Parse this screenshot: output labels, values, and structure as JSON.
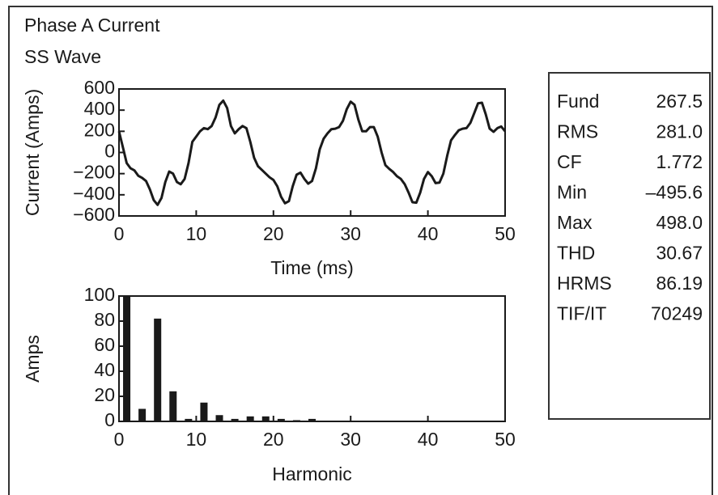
{
  "header": {
    "title": "Phase A Current",
    "subtitle": "SS Wave"
  },
  "chart_data": [
    {
      "type": "line",
      "color": "#1a1a1a",
      "x_label": "Time (ms)",
      "y_label": "Current (Amps)",
      "x": [
        0,
        0.5,
        1,
        1.5,
        2,
        2.5,
        3,
        3.5,
        4,
        4.5,
        5,
        5.5,
        6,
        6.5,
        7,
        7.5,
        8,
        8.5,
        9,
        9.5,
        10,
        10.5,
        11,
        11.5,
        12,
        12.5,
        13,
        13.5,
        14,
        14.5,
        15,
        15.5,
        16,
        16.5,
        17,
        17.5,
        18,
        18.5,
        19,
        19.5,
        20,
        20.5,
        21,
        21.5,
        22,
        22.5,
        23,
        23.5,
        24,
        24.5,
        25,
        25.5,
        26,
        26.5,
        27,
        27.5,
        28,
        28.5,
        29,
        29.5,
        30,
        30.5,
        31,
        31.5,
        32,
        32.5,
        33,
        33.5,
        34,
        34.5,
        35,
        35.5,
        36,
        36.5,
        37,
        37.5,
        38,
        38.5,
        39,
        39.5,
        40,
        40.5,
        41,
        41.5,
        42,
        42.5,
        43,
        43.5,
        44,
        44.5,
        45,
        45.5,
        46,
        46.5,
        47,
        47.5,
        48,
        48.5,
        49,
        49.5,
        50
      ],
      "values": [
        200,
        50,
        -100,
        -150,
        -170,
        -220,
        -240,
        -270,
        -350,
        -450,
        -495,
        -430,
        -280,
        -180,
        -200,
        -280,
        -300,
        -250,
        -100,
        100,
        150,
        200,
        230,
        220,
        250,
        330,
        450,
        490,
        420,
        250,
        180,
        220,
        250,
        230,
        100,
        -50,
        -130,
        -165,
        -200,
        -235,
        -260,
        -320,
        -420,
        -480,
        -460,
        -320,
        -210,
        -190,
        -250,
        -295,
        -270,
        -150,
        30,
        130,
        180,
        220,
        225,
        240,
        300,
        410,
        480,
        450,
        310,
        200,
        200,
        240,
        240,
        150,
        0,
        -120,
        -155,
        -185,
        -225,
        -250,
        -300,
        -380,
        -470,
        -475,
        -380,
        -250,
        -185,
        -225,
        -290,
        -285,
        -200,
        -30,
        115,
        165,
        210,
        225,
        230,
        280,
        370,
        465,
        470,
        360,
        225,
        195,
        230,
        245,
        200
      ],
      "xlim": [
        0,
        50
      ],
      "xticks": [
        0,
        10,
        20,
        30,
        40,
        50
      ],
      "ylim": [
        -600,
        600
      ],
      "yticks": [
        {
          "value": -600,
          "label": "−600"
        },
        {
          "value": -400,
          "label": "−400"
        },
        {
          "value": -200,
          "label": "−200"
        },
        0,
        200,
        400,
        600
      ]
    },
    {
      "type": "bar",
      "color": "#1a1a1a",
      "x_label": "Harmonic",
      "y_label": "Amps",
      "x": [
        1,
        3,
        5,
        7,
        9,
        11,
        13,
        15,
        17,
        19,
        21,
        23,
        25
      ],
      "values": [
        100,
        10,
        82,
        24,
        2,
        15,
        5,
        2,
        4,
        4,
        2,
        1,
        2
      ],
      "xlim": [
        0,
        50
      ],
      "xticks": [
        0,
        10,
        20,
        30,
        40,
        50
      ],
      "ylim": [
        0,
        100
      ],
      "yticks": [
        0,
        20,
        40,
        60,
        80,
        100
      ]
    }
  ],
  "stats": {
    "rows": [
      [
        "Fund",
        "267.5"
      ],
      [
        "RMS",
        "281.0"
      ],
      [
        "CF",
        "1.772"
      ],
      [
        "Min",
        "–495.6"
      ],
      [
        "Max",
        "498.0"
      ],
      [
        "THD",
        "30.67"
      ],
      [
        "HRMS",
        "86.19"
      ],
      [
        "TIF/IT",
        "70249"
      ]
    ]
  }
}
